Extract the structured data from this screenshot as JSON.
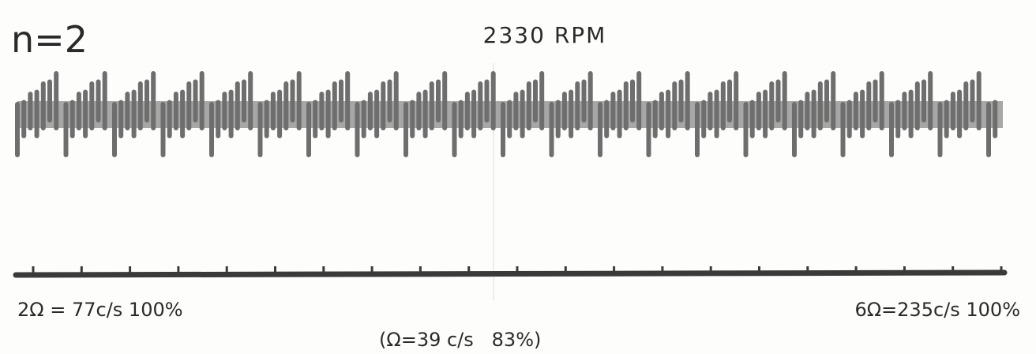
{
  "header": {
    "mode": "n=2",
    "speed": "2330 RPM"
  },
  "captions": {
    "left": "2Ω = 77c/s 100%",
    "right": "6Ω=235c/s 100%",
    "center": "(Ω=39 c/s   83%)"
  }
}
